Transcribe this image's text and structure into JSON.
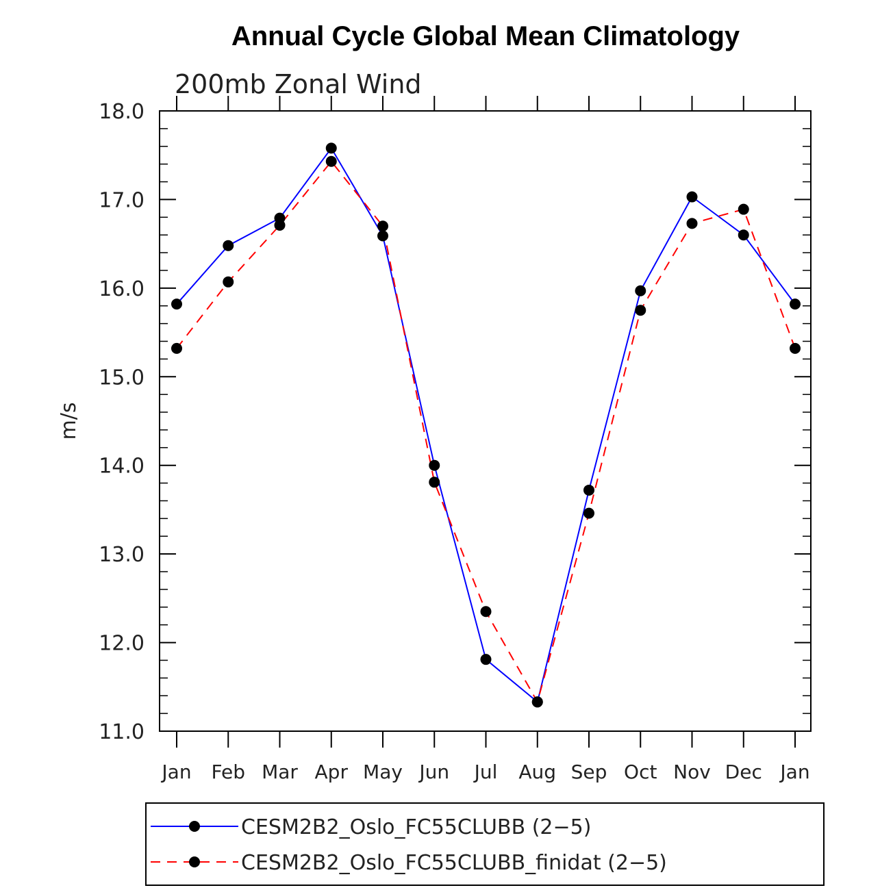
{
  "chart_data": {
    "type": "line",
    "title": "Annual Cycle Global Mean Climatology",
    "subtitle": "200mb Zonal Wind",
    "xlabel": "",
    "ylabel": "m/s",
    "categories": [
      "Jan",
      "Feb",
      "Mar",
      "Apr",
      "May",
      "Jun",
      "Jul",
      "Aug",
      "Sep",
      "Oct",
      "Nov",
      "Dec",
      "Jan"
    ],
    "ylim": [
      11.0,
      18.0
    ],
    "yticks": [
      "11.0",
      "12.0",
      "13.0",
      "14.0",
      "15.0",
      "16.0",
      "17.0",
      "18.0"
    ],
    "grid": false,
    "legend_position": "bottom",
    "series": [
      {
        "name": "CESM2B2_Oslo_FC55CLUBB (2−5)",
        "color": "#0000ff",
        "dash": "solid",
        "values": [
          15.82,
          16.48,
          16.79,
          17.58,
          16.59,
          14.0,
          11.81,
          11.33,
          13.72,
          15.97,
          17.03,
          16.6,
          15.82
        ]
      },
      {
        "name": "CESM2B2_Oslo_FC55CLUBB_finidat (2−5)",
        "color": "#ff0000",
        "dash": "dashed",
        "values": [
          15.32,
          16.07,
          16.71,
          17.43,
          16.7,
          13.81,
          12.35,
          11.33,
          13.46,
          15.75,
          16.73,
          16.89,
          15.32
        ]
      }
    ]
  }
}
